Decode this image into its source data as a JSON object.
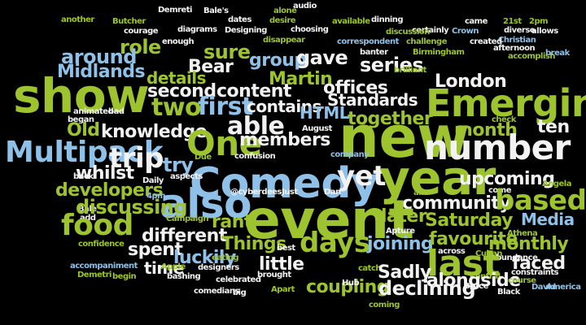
{
  "palette": {
    "background": "#000000",
    "lime": "#9dc32e",
    "blue": "#8fc1e8",
    "white": "#f2f2f2"
  },
  "words": [
    {
      "text": "Demreti",
      "color": "white"
    },
    {
      "text": "Bale's",
      "color": "white"
    },
    {
      "text": "alone",
      "color": "lime"
    },
    {
      "text": "audio",
      "color": "white"
    },
    {
      "text": "another",
      "color": "lime"
    },
    {
      "text": "Butcher",
      "color": "lime"
    },
    {
      "text": "dates",
      "color": "white"
    },
    {
      "text": "desire",
      "color": "lime"
    },
    {
      "text": "dinning",
      "color": "white"
    },
    {
      "text": "came",
      "color": "white"
    },
    {
      "text": "21st",
      "color": "lime"
    },
    {
      "text": "2pm",
      "color": "lime"
    },
    {
      "text": "Designing",
      "color": "white"
    },
    {
      "text": "available",
      "color": "lime"
    },
    {
      "text": "diagrams",
      "color": "white"
    },
    {
      "text": "choosing",
      "color": "white"
    },
    {
      "text": "certainly",
      "color": "white"
    },
    {
      "text": "Crown",
      "color": "blue"
    },
    {
      "text": "diverse",
      "color": "white"
    },
    {
      "text": "allows",
      "color": "white"
    },
    {
      "text": "courage",
      "color": "white"
    },
    {
      "text": "disappear",
      "color": "lime"
    },
    {
      "text": "discussion",
      "color": "lime"
    },
    {
      "text": "Christian",
      "color": "blue"
    },
    {
      "text": "role",
      "color": "lime"
    },
    {
      "text": "enough",
      "color": "white"
    },
    {
      "text": "correspondent",
      "color": "blue"
    },
    {
      "text": "challenge",
      "color": "lime"
    },
    {
      "text": "created",
      "color": "white"
    },
    {
      "text": "afternoon",
      "color": "white"
    },
    {
      "text": "sure",
      "color": "lime"
    },
    {
      "text": "banter",
      "color": "white"
    },
    {
      "text": "Birmingham",
      "color": "lime"
    },
    {
      "text": "around",
      "color": "blue"
    },
    {
      "text": "group",
      "color": "blue"
    },
    {
      "text": "gave",
      "color": "white"
    },
    {
      "text": "series",
      "color": "white"
    },
    {
      "text": "brilliant",
      "color": "lime"
    },
    {
      "text": "accomplish",
      "color": "lime"
    },
    {
      "text": "break",
      "color": "blue"
    },
    {
      "text": "Midlands",
      "color": "blue"
    },
    {
      "text": "Bear",
      "color": "white"
    },
    {
      "text": "details",
      "color": "lime"
    },
    {
      "text": "London",
      "color": "white"
    },
    {
      "text": "Martin",
      "color": "lime"
    },
    {
      "text": "show",
      "color": "lime"
    },
    {
      "text": "second",
      "color": "white"
    },
    {
      "text": "content",
      "color": "white"
    },
    {
      "text": "offices",
      "color": "white"
    },
    {
      "text": "Emerging",
      "color": "lime"
    },
    {
      "text": "Standards",
      "color": "white"
    },
    {
      "text": "two",
      "color": "lime"
    },
    {
      "text": "first",
      "color": "blue"
    },
    {
      "text": "contains",
      "color": "white"
    },
    {
      "text": "HTML",
      "color": "blue"
    },
    {
      "text": "together",
      "color": "lime"
    },
    {
      "text": "ten",
      "color": "white"
    },
    {
      "text": "animated",
      "color": "white"
    },
    {
      "text": "bad",
      "color": "white"
    },
    {
      "text": "able",
      "color": "white"
    },
    {
      "text": "began",
      "color": "white"
    },
    {
      "text": "check",
      "color": "lime"
    },
    {
      "text": "Old",
      "color": "lime"
    },
    {
      "text": "knowledge",
      "color": "white"
    },
    {
      "text": "month",
      "color": "lime"
    },
    {
      "text": "One",
      "color": "lime"
    },
    {
      "text": "August",
      "color": "white"
    },
    {
      "text": "new",
      "color": "lime"
    },
    {
      "text": "members",
      "color": "white"
    },
    {
      "text": "Multipack",
      "color": "blue"
    },
    {
      "text": "trip",
      "color": "white"
    },
    {
      "text": "number",
      "color": "white"
    },
    {
      "text": "try",
      "color": "blue"
    },
    {
      "text": "Due",
      "color": "lime"
    },
    {
      "text": "confusion",
      "color": "white"
    },
    {
      "text": "company",
      "color": "blue"
    },
    {
      "text": "Comedy",
      "color": "blue"
    },
    {
      "text": "whilst",
      "color": "white"
    },
    {
      "text": "back",
      "color": "white"
    },
    {
      "text": "aspects",
      "color": "white"
    },
    {
      "text": "yet",
      "color": "white"
    },
    {
      "text": "year",
      "color": "lime"
    },
    {
      "text": "upcoming",
      "color": "white"
    },
    {
      "text": "Angela",
      "color": "lime"
    },
    {
      "text": "Daily",
      "color": "white"
    },
    {
      "text": "developers",
      "color": "lime"
    },
    {
      "text": "also",
      "color": "blue"
    },
    {
      "text": "4pm",
      "color": "blue"
    },
    {
      "text": "@cyberdeesJust",
      "color": "white"
    },
    {
      "text": "Dan",
      "color": "white"
    },
    {
      "text": "air",
      "color": "lime"
    },
    {
      "text": "come",
      "color": "white"
    },
    {
      "text": "community",
      "color": "white"
    },
    {
      "text": "based",
      "color": "lime"
    },
    {
      "text": "Bale",
      "color": "white"
    },
    {
      "text": "discussing",
      "color": "lime"
    },
    {
      "text": "add",
      "color": "white"
    },
    {
      "text": "food",
      "color": "lime"
    },
    {
      "text": "event",
      "color": "lime"
    },
    {
      "text": "later",
      "color": "lime"
    },
    {
      "text": "Saturday",
      "color": "lime"
    },
    {
      "text": "Media",
      "color": "blue"
    },
    {
      "text": "rant",
      "color": "lime"
    },
    {
      "text": "Campaign",
      "color": "lime"
    },
    {
      "text": "different",
      "color": "white"
    },
    {
      "text": "Apture",
      "color": "white"
    },
    {
      "text": "Athena",
      "color": "lime"
    },
    {
      "text": "confidence",
      "color": "lime"
    },
    {
      "text": "days",
      "color": "lime"
    },
    {
      "text": "Things",
      "color": "lime"
    },
    {
      "text": "joining",
      "color": "blue"
    },
    {
      "text": "favourite",
      "color": "lime"
    },
    {
      "text": "monthly",
      "color": "lime"
    },
    {
      "text": "across",
      "color": "white"
    },
    {
      "text": "spent",
      "color": "white"
    },
    {
      "text": "best",
      "color": "white"
    },
    {
      "text": "Cuban",
      "color": "lime"
    },
    {
      "text": "abundance",
      "color": "white"
    },
    {
      "text": "luckily",
      "color": "blue"
    },
    {
      "text": "last",
      "color": "lime"
    },
    {
      "text": "eating",
      "color": "lime"
    },
    {
      "text": "little",
      "color": "white"
    },
    {
      "text": "accompaniment",
      "color": "blue"
    },
    {
      "text": "time",
      "color": "white"
    },
    {
      "text": "Apple",
      "color": "lime"
    },
    {
      "text": "designers",
      "color": "white"
    },
    {
      "text": "catch",
      "color": "lime"
    },
    {
      "text": "faced",
      "color": "white"
    },
    {
      "text": "Sadly",
      "color": "white"
    },
    {
      "text": "constraints",
      "color": "white"
    },
    {
      "text": "Demetri",
      "color": "lime"
    },
    {
      "text": "Central",
      "color": "lime"
    },
    {
      "text": "begin",
      "color": "lime"
    },
    {
      "text": "bashing",
      "color": "white"
    },
    {
      "text": "celebrated",
      "color": "white"
    },
    {
      "text": "brought",
      "color": "white"
    },
    {
      "text": "alongside",
      "color": "white"
    },
    {
      "text": "Bruce",
      "color": "white"
    },
    {
      "text": "course",
      "color": "lime"
    },
    {
      "text": "comedians",
      "color": "white"
    },
    {
      "text": "Apart",
      "color": "lime"
    },
    {
      "text": "coupling",
      "color": "lime"
    },
    {
      "text": "Hub",
      "color": "white"
    },
    {
      "text": "declining",
      "color": "white"
    },
    {
      "text": "Black",
      "color": "white"
    },
    {
      "text": "David",
      "color": "blue"
    },
    {
      "text": "America",
      "color": "blue"
    },
    {
      "text": "big",
      "color": "white"
    },
    {
      "text": "coming",
      "color": "lime"
    },
    {
      "text": "Batman",
      "color": "blue"
    }
  ]
}
